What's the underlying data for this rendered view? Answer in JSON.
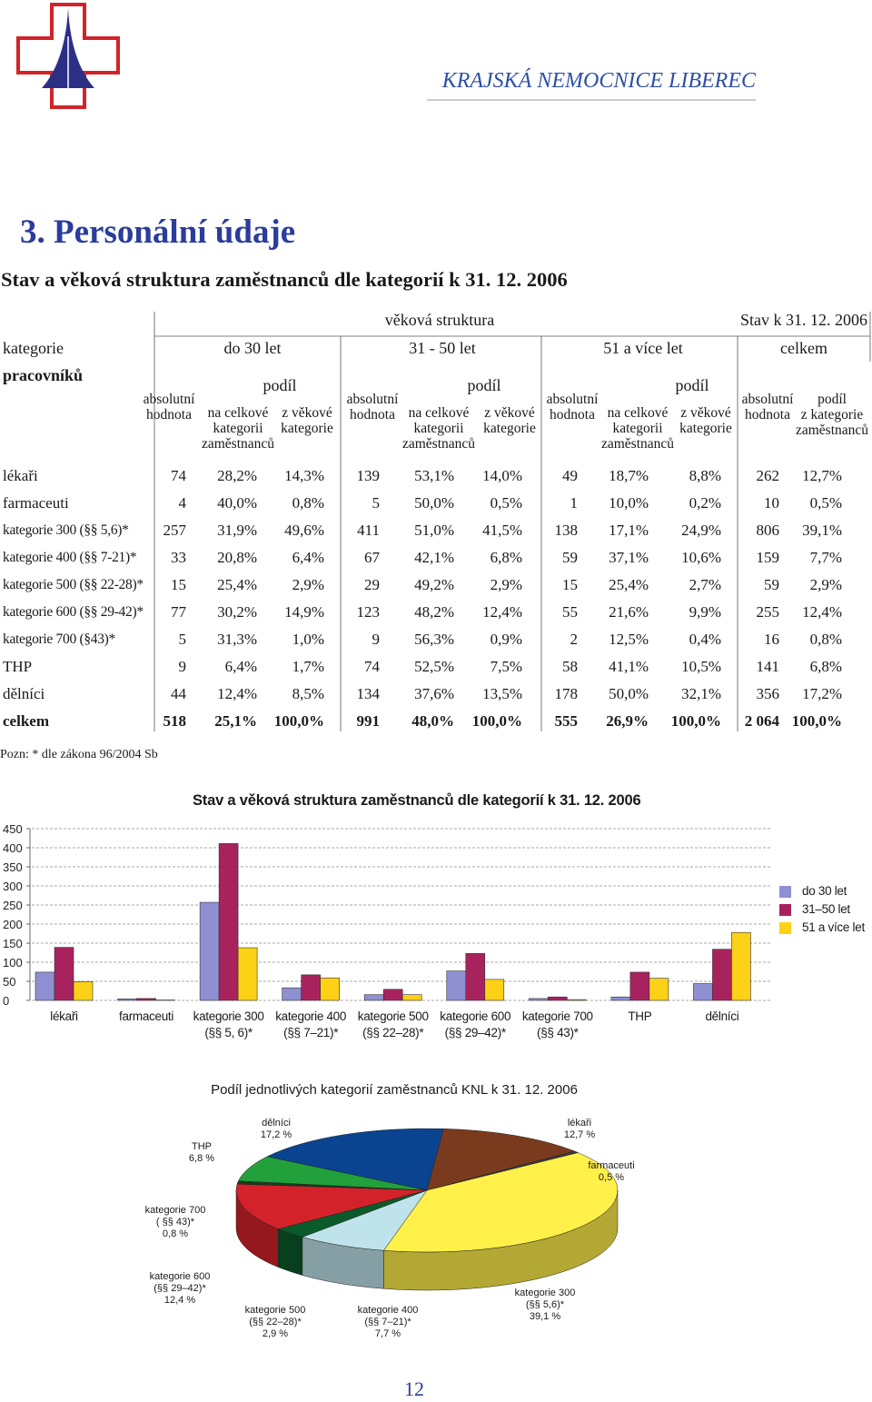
{
  "header": {
    "institution": "KRAJSKÁ NEMOCNICE LIBEREC"
  },
  "section": {
    "title": "3. Personální údaje",
    "subtitle": "Stav a věková struktura zaměstnanců dle kategorií k 31. 12. 2006"
  },
  "table": {
    "group_header": "věková struktura",
    "date_header": "Stav k 31. 12. 2006",
    "category_header": "kategorie",
    "category_header_2": "pracovníků",
    "groups": [
      "do 30 let",
      "31 - 50 let",
      "51 a více let",
      "celkem"
    ],
    "share_header": "podíl",
    "abs_header": "absolutní\nhodnota",
    "share_total_header": "na celkové\nkategorii\nzaměstnanců",
    "share_age_header": "z věkové\nkategorie",
    "total_share_header": "z kategorie\nzaměstnanců",
    "rows": [
      [
        "lékaři",
        "74",
        "28,2%",
        "14,3%",
        "139",
        "53,1%",
        "14,0%",
        "49",
        "18,7%",
        "8,8%",
        "262",
        "12,7%"
      ],
      [
        "farmaceuti",
        "4",
        "40,0%",
        "0,8%",
        "5",
        "50,0%",
        "0,5%",
        "1",
        "10,0%",
        "0,2%",
        "10",
        "0,5%"
      ],
      [
        "kategorie 300 (§§ 5,6)*",
        "257",
        "31,9%",
        "49,6%",
        "411",
        "51,0%",
        "41,5%",
        "138",
        "17,1%",
        "24,9%",
        "806",
        "39,1%"
      ],
      [
        "kategorie 400 (§§ 7-21)*",
        "33",
        "20,8%",
        "6,4%",
        "67",
        "42,1%",
        "6,8%",
        "59",
        "37,1%",
        "10,6%",
        "159",
        "7,7%"
      ],
      [
        "kategorie 500 (§§ 22-28)*",
        "15",
        "25,4%",
        "2,9%",
        "29",
        "49,2%",
        "2,9%",
        "15",
        "25,4%",
        "2,7%",
        "59",
        "2,9%"
      ],
      [
        "kategorie 600 (§§ 29-42)*",
        "77",
        "30,2%",
        "14,9%",
        "123",
        "48,2%",
        "12,4%",
        "55",
        "21,6%",
        "9,9%",
        "255",
        "12,4%"
      ],
      [
        "kategorie 700 (§43)*",
        "5",
        "31,3%",
        "1,0%",
        "9",
        "56,3%",
        "0,9%",
        "2",
        "12,5%",
        "0,4%",
        "16",
        "0,8%"
      ],
      [
        "THP",
        "9",
        "6,4%",
        "1,7%",
        "74",
        "52,5%",
        "7,5%",
        "58",
        "41,1%",
        "10,5%",
        "141",
        "6,8%"
      ],
      [
        "dělníci",
        "44",
        "12,4%",
        "8,5%",
        "134",
        "37,6%",
        "13,5%",
        "178",
        "50,0%",
        "32,1%",
        "356",
        "17,2%"
      ],
      [
        "celkem",
        "518",
        "25,1%",
        "100,0%",
        "991",
        "48,0%",
        "100,0%",
        "555",
        "26,9%",
        "100,0%",
        "2 064",
        "100,0%"
      ]
    ]
  },
  "note": "Pozn: * dle zákona 96/2004 Sb",
  "chart_data": [
    {
      "type": "bar",
      "title": "Stav a věková struktura zaměstnanců dle kategorií k 31. 12. 2006",
      "categories": [
        "lékaři",
        "farmaceuti",
        "kategorie 300\n(§§ 5, 6)*",
        "kategorie 400\n(§§ 7–21)*",
        "kategorie 500\n(§§ 22–28)*",
        "kategorie 600\n(§§ 29–42)*",
        "kategorie 700\n(§§ 43)*",
        "THP",
        "dělníci"
      ],
      "series": [
        {
          "name": "do 30 let",
          "color": "#8e90d2",
          "values": [
            74,
            4,
            257,
            33,
            15,
            77,
            5,
            9,
            44
          ]
        },
        {
          "name": "31–50 let",
          "color": "#a8235e",
          "values": [
            139,
            5,
            411,
            67,
            29,
            123,
            9,
            74,
            134
          ]
        },
        {
          "name": "51 a více let",
          "color": "#fcd116",
          "values": [
            49,
            1,
            138,
            59,
            15,
            55,
            2,
            58,
            178
          ]
        }
      ],
      "ylim": [
        0,
        450
      ],
      "yticks": [
        0,
        50,
        100,
        150,
        200,
        250,
        300,
        350,
        400,
        450
      ],
      "grid": true,
      "legend": "right"
    },
    {
      "type": "pie",
      "title": "Podíl jednotlivých kategorií zaměstnanců KNL k 31. 12. 2006",
      "categories": [
        "lékaři",
        "farmaceuti",
        "kategorie 300\n(§§ 5,6)*",
        "kategorie 400\n(§§ 7–21)*",
        "kategorie 500\n(§§ 22–28)*",
        "kategorie 600\n(§§ 29–42)*",
        "kategorie 700\n( §§ 43)*",
        "THP",
        "dělníci"
      ],
      "values": [
        12.7,
        0.5,
        39.1,
        7.7,
        2.9,
        12.4,
        0.8,
        6.8,
        17.2
      ],
      "value_labels": [
        "12,7 %",
        "0,5 %",
        "39,1 %",
        "7,7 %",
        "2,9 %",
        "12,4 %",
        "0,8 %",
        "6,8 %",
        "17,2 %"
      ],
      "colors": [
        "#7a3a1e",
        "#3a3a3a",
        "#fff04a",
        "#bfe3ea",
        "#0b5a2a",
        "#d3222a",
        "#1a3d1f",
        "#22a03c",
        "#0a4490"
      ]
    }
  ],
  "page_number": "12"
}
